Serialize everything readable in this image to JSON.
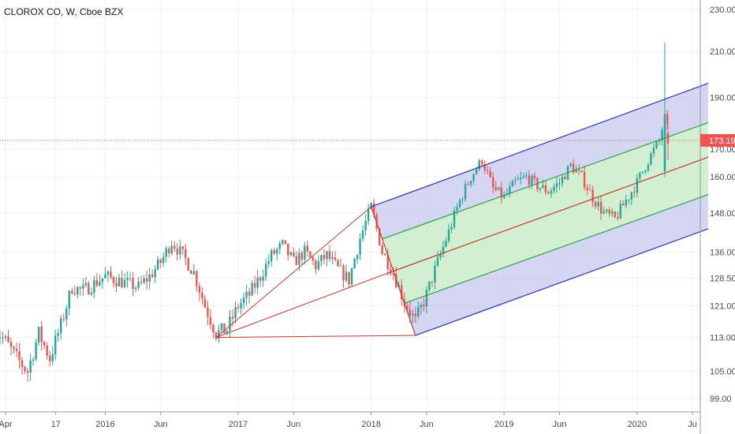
{
  "header": {
    "symbol_title": "CLOROX CO, W, Cboe BZX"
  },
  "colors": {
    "up": "#26a69a",
    "down": "#ef5350",
    "grid": "#eef0f3",
    "axis_line": "#9598a1",
    "outer_channel_fill": "#c5c8ed",
    "outer_channel_line": "#2e35b0",
    "inner_channel_fill": "#d3f0cf",
    "inner_channel_line": "#2d9e4f",
    "median_line": "#c0392b",
    "price_line": "#ef5350"
  },
  "chart_data": {
    "type": "candlestick",
    "title": "CLOROX CO, W, Cboe BZX",
    "interval": "W",
    "exchange": "Cboe BZX",
    "ylim": [
      96,
      233
    ],
    "y_ticks": [
      "230.00",
      "210.00",
      "190.00",
      "170.00",
      "160.00",
      "148.00",
      "136.00",
      "128.50",
      "121.00",
      "113.00",
      "105.00",
      "99.00"
    ],
    "x_ticks": [
      {
        "label": "Apr",
        "date": "2015-04"
      },
      {
        "label": "17",
        "date": "2015-08-17"
      },
      {
        "label": "2016",
        "date": "2016-01"
      },
      {
        "label": "Jun",
        "date": "2016-06"
      },
      {
        "label": "2017",
        "date": "2017-01"
      },
      {
        "label": "Jun",
        "date": "2017-06"
      },
      {
        "label": "2018",
        "date": "2018-01"
      },
      {
        "label": "Jun",
        "date": "2018-06"
      },
      {
        "label": "2019",
        "date": "2019-01"
      },
      {
        "label": "Jun",
        "date": "2019-06"
      },
      {
        "label": "2020",
        "date": "2020-01"
      },
      {
        "label": "Ju",
        "date": "2020-06"
      }
    ],
    "last_price": "173.19",
    "last_price_value": 173.19,
    "price_path": [
      [
        "2015-03",
        115
      ],
      [
        "2015-04",
        112
      ],
      [
        "2015-05",
        108
      ],
      [
        "2015-06",
        105
      ],
      [
        "2015-07",
        114
      ],
      [
        "2015-08",
        108
      ],
      [
        "2015-09",
        116
      ],
      [
        "2015-10",
        126
      ],
      [
        "2015-11",
        125
      ],
      [
        "2015-12",
        127
      ],
      [
        "2016-01",
        129
      ],
      [
        "2016-02",
        128
      ],
      [
        "2016-03",
        127
      ],
      [
        "2016-04",
        126
      ],
      [
        "2016-05",
        129
      ],
      [
        "2016-06",
        133
      ],
      [
        "2016-07",
        139
      ],
      [
        "2016-08",
        135
      ],
      [
        "2016-09",
        130
      ],
      [
        "2016-10",
        121
      ],
      [
        "2016-11",
        114
      ],
      [
        "2016-12",
        115
      ],
      [
        "2017-01",
        121
      ],
      [
        "2017-02",
        124
      ],
      [
        "2017-03",
        129
      ],
      [
        "2017-04",
        135
      ],
      [
        "2017-05",
        138
      ],
      [
        "2017-06",
        133
      ],
      [
        "2017-07",
        136
      ],
      [
        "2017-08",
        132
      ],
      [
        "2017-09",
        135
      ],
      [
        "2017-10",
        131
      ],
      [
        "2017-11",
        128
      ],
      [
        "2017-12",
        140
      ],
      [
        "2018-01",
        150
      ],
      [
        "2018-02",
        136
      ],
      [
        "2018-03",
        130
      ],
      [
        "2018-04",
        122
      ],
      [
        "2018-05",
        117
      ],
      [
        "2018-06",
        124
      ],
      [
        "2018-07",
        133
      ],
      [
        "2018-08",
        142
      ],
      [
        "2018-09",
        152
      ],
      [
        "2018-10",
        160
      ],
      [
        "2018-11",
        166
      ],
      [
        "2018-12",
        156
      ],
      [
        "2019-01",
        153
      ],
      [
        "2019-02",
        158
      ],
      [
        "2019-03",
        160
      ],
      [
        "2019-04",
        157
      ],
      [
        "2019-05",
        155
      ],
      [
        "2019-06",
        158
      ],
      [
        "2019-07",
        164
      ],
      [
        "2019-08",
        160
      ],
      [
        "2019-09",
        153
      ],
      [
        "2019-10",
        148
      ],
      [
        "2019-11",
        146
      ],
      [
        "2019-12",
        152
      ],
      [
        "2020-01",
        158
      ],
      [
        "2020-02",
        166
      ],
      [
        "2020-03",
        173
      ],
      [
        "2020-03-16",
        182
      ],
      [
        "2020-03-30",
        173.19
      ]
    ],
    "spike": {
      "date": "2020-03-16",
      "high": 214,
      "low": 160
    },
    "pitchfork": {
      "pivot_a": {
        "date": "2016-11",
        "price": 113
      },
      "pivot_b": {
        "date": "2018-01",
        "price": 150
      },
      "pivot_c": {
        "date": "2018-05",
        "price": 113.5
      },
      "median_end": {
        "date": "2020-06",
        "price": 167
      },
      "outer_upper_end": {
        "date": "2020-06",
        "price": 196
      },
      "outer_lower_end": {
        "date": "2020-06",
        "price": 143
      },
      "inner_upper_end": {
        "date": "2020-06",
        "price": 180
      },
      "inner_lower_end": {
        "date": "2020-06",
        "price": 154
      }
    },
    "grid": true,
    "legend": "none"
  }
}
